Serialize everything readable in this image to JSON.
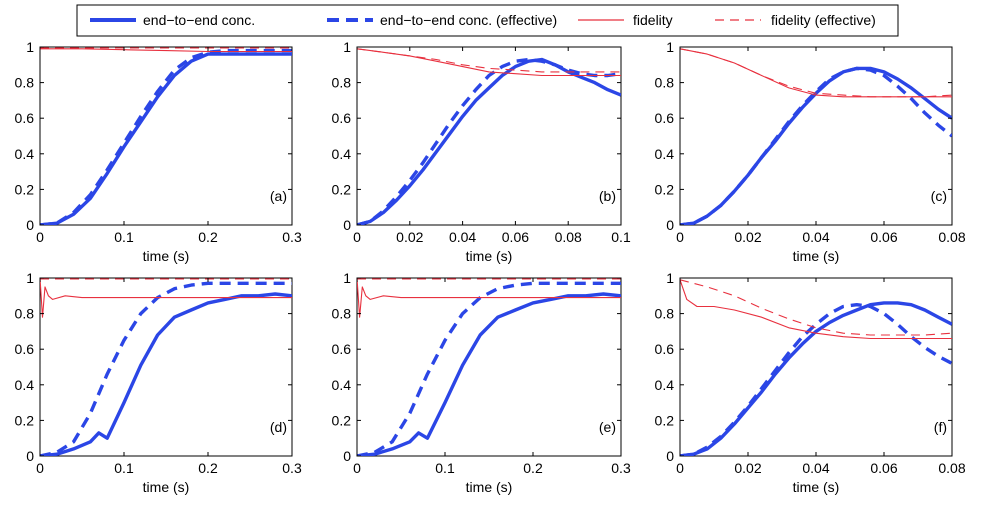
{
  "colors": {
    "concurrence": "#2b46e6",
    "fidelity": "#e8313f",
    "axis": "#000000"
  },
  "legend": {
    "items": [
      {
        "label": "end−to−end conc.",
        "series": "concurrence",
        "style": "solid"
      },
      {
        "label": "end−to−end conc. (effective)",
        "series": "concurrence",
        "style": "dashed"
      },
      {
        "label": "fidelity",
        "series": "fidelity",
        "style": "solid"
      },
      {
        "label": "fidelity (effective)",
        "series": "fidelity",
        "style": "dashed"
      }
    ]
  },
  "chart_data": [
    {
      "type": "line",
      "tag": "(a)",
      "xlabel": "time (s)",
      "ylabel": "",
      "xlim": [
        0,
        0.3
      ],
      "ylim": [
        0,
        1
      ],
      "xticks": [
        0,
        0.1,
        0.2,
        0.3
      ],
      "xtick_labels": [
        "0",
        "0.1",
        "0.2",
        "0.3"
      ],
      "yticks": [
        0,
        0.2,
        0.4,
        0.6,
        0.8,
        1
      ],
      "ytick_labels": [
        "0",
        "0.2",
        "0.4",
        "0.6",
        "0.8",
        "1"
      ],
      "series": [
        {
          "name": "end-to-end conc.",
          "x": [
            0,
            0.02,
            0.04,
            0.06,
            0.08,
            0.1,
            0.12,
            0.14,
            0.16,
            0.18,
            0.2,
            0.22,
            0.25,
            0.28,
            0.3
          ],
          "y": [
            0,
            0.01,
            0.06,
            0.15,
            0.29,
            0.44,
            0.58,
            0.72,
            0.84,
            0.92,
            0.96,
            0.96,
            0.96,
            0.96,
            0.96
          ]
        },
        {
          "name": "end-to-end conc. (effective)",
          "x": [
            0,
            0.02,
            0.04,
            0.06,
            0.08,
            0.1,
            0.12,
            0.14,
            0.16,
            0.18,
            0.2,
            0.22,
            0.25,
            0.28,
            0.3
          ],
          "y": [
            0,
            0.01,
            0.07,
            0.17,
            0.31,
            0.46,
            0.61,
            0.75,
            0.87,
            0.94,
            0.97,
            0.98,
            0.98,
            0.98,
            0.98
          ]
        },
        {
          "name": "fidelity",
          "x": [
            0,
            0.05,
            0.1,
            0.15,
            0.2,
            0.25,
            0.3
          ],
          "y": [
            0.99,
            0.99,
            0.985,
            0.98,
            0.975,
            0.975,
            0.975
          ]
        },
        {
          "name": "fidelity (effective)",
          "x": [
            0,
            0.05,
            0.1,
            0.15,
            0.2,
            0.25,
            0.3
          ],
          "y": [
            0.995,
            0.995,
            0.995,
            0.995,
            0.995,
            0.995,
            0.995
          ]
        }
      ]
    },
    {
      "type": "line",
      "tag": "(b)",
      "xlabel": "time (s)",
      "ylabel": "",
      "xlim": [
        0,
        0.1
      ],
      "ylim": [
        0,
        1
      ],
      "xticks": [
        0,
        0.02,
        0.04,
        0.06,
        0.08,
        0.1
      ],
      "xtick_labels": [
        "0",
        "0.02",
        "0.04",
        "0.06",
        "0.08",
        "0.1"
      ],
      "yticks": [
        0,
        0.2,
        0.4,
        0.6,
        0.8,
        1
      ],
      "ytick_labels": [
        "0",
        "0.2",
        "0.4",
        "0.6",
        "0.8",
        "1"
      ],
      "series": [
        {
          "name": "end-to-end conc.",
          "x": [
            0,
            0.005,
            0.01,
            0.015,
            0.02,
            0.025,
            0.03,
            0.035,
            0.04,
            0.045,
            0.05,
            0.055,
            0.06,
            0.065,
            0.07,
            0.075,
            0.08,
            0.085,
            0.09,
            0.095,
            0.1
          ],
          "y": [
            0,
            0.02,
            0.07,
            0.14,
            0.22,
            0.31,
            0.41,
            0.51,
            0.61,
            0.7,
            0.77,
            0.84,
            0.89,
            0.92,
            0.93,
            0.9,
            0.86,
            0.83,
            0.8,
            0.76,
            0.73
          ]
        },
        {
          "name": "end-to-end conc. (effective)",
          "x": [
            0,
            0.005,
            0.01,
            0.015,
            0.02,
            0.025,
            0.03,
            0.035,
            0.04,
            0.045,
            0.05,
            0.055,
            0.06,
            0.065,
            0.07,
            0.075,
            0.08,
            0.085,
            0.09,
            0.095,
            0.1
          ],
          "y": [
            0,
            0.02,
            0.08,
            0.16,
            0.25,
            0.35,
            0.46,
            0.57,
            0.67,
            0.76,
            0.84,
            0.89,
            0.92,
            0.93,
            0.92,
            0.9,
            0.87,
            0.85,
            0.84,
            0.84,
            0.85
          ]
        },
        {
          "name": "fidelity",
          "x": [
            0,
            0.01,
            0.02,
            0.03,
            0.04,
            0.05,
            0.06,
            0.07,
            0.08,
            0.09,
            0.1
          ],
          "y": [
            0.99,
            0.97,
            0.95,
            0.92,
            0.89,
            0.86,
            0.85,
            0.84,
            0.84,
            0.84,
            0.84
          ]
        },
        {
          "name": "fidelity (effective)",
          "x": [
            0,
            0.01,
            0.02,
            0.03,
            0.04,
            0.05,
            0.06,
            0.07,
            0.08,
            0.09,
            0.1
          ],
          "y": [
            0.99,
            0.97,
            0.95,
            0.93,
            0.9,
            0.88,
            0.87,
            0.86,
            0.86,
            0.86,
            0.86
          ]
        }
      ]
    },
    {
      "type": "line",
      "tag": "(c)",
      "xlabel": "time (s)",
      "ylabel": "",
      "xlim": [
        0,
        0.08
      ],
      "ylim": [
        0,
        1
      ],
      "xticks": [
        0,
        0.02,
        0.04,
        0.06,
        0.08
      ],
      "xtick_labels": [
        "0",
        "0.02",
        "0.04",
        "0.06",
        "0.08"
      ],
      "yticks": [
        0,
        0.2,
        0.4,
        0.6,
        0.8,
        1
      ],
      "ytick_labels": [
        "0",
        "0.2",
        "0.4",
        "0.6",
        "0.8",
        "1"
      ],
      "series": [
        {
          "name": "end-to-end conc.",
          "x": [
            0,
            0.004,
            0.008,
            0.012,
            0.016,
            0.02,
            0.024,
            0.028,
            0.032,
            0.036,
            0.04,
            0.044,
            0.048,
            0.052,
            0.056,
            0.06,
            0.064,
            0.068,
            0.072,
            0.076,
            0.08
          ],
          "y": [
            0,
            0.01,
            0.05,
            0.11,
            0.19,
            0.28,
            0.38,
            0.47,
            0.57,
            0.66,
            0.74,
            0.81,
            0.86,
            0.88,
            0.88,
            0.86,
            0.82,
            0.77,
            0.71,
            0.65,
            0.6
          ]
        },
        {
          "name": "end-to-end conc. (effective)",
          "x": [
            0,
            0.004,
            0.008,
            0.012,
            0.016,
            0.02,
            0.024,
            0.028,
            0.032,
            0.036,
            0.04,
            0.044,
            0.048,
            0.052,
            0.056,
            0.06,
            0.064,
            0.068,
            0.072,
            0.076,
            0.08
          ],
          "y": [
            0,
            0.01,
            0.05,
            0.11,
            0.19,
            0.28,
            0.38,
            0.48,
            0.58,
            0.67,
            0.75,
            0.82,
            0.86,
            0.88,
            0.87,
            0.84,
            0.78,
            0.71,
            0.63,
            0.56,
            0.5
          ]
        },
        {
          "name": "fidelity",
          "x": [
            0,
            0.008,
            0.016,
            0.024,
            0.032,
            0.04,
            0.048,
            0.056,
            0.064,
            0.072,
            0.08
          ],
          "y": [
            0.99,
            0.96,
            0.91,
            0.84,
            0.77,
            0.73,
            0.72,
            0.72,
            0.72,
            0.72,
            0.72
          ]
        },
        {
          "name": "fidelity (effective)",
          "x": [
            0,
            0.008,
            0.016,
            0.024,
            0.032,
            0.04,
            0.048,
            0.056,
            0.064,
            0.072,
            0.08
          ],
          "y": [
            0.99,
            0.96,
            0.91,
            0.84,
            0.78,
            0.74,
            0.73,
            0.72,
            0.72,
            0.72,
            0.73
          ]
        }
      ]
    },
    {
      "type": "line",
      "tag": "(d)",
      "xlabel": "time (s)",
      "ylabel": "",
      "xlim": [
        0,
        0.3
      ],
      "ylim": [
        0,
        1
      ],
      "xticks": [
        0,
        0.1,
        0.2,
        0.3
      ],
      "xtick_labels": [
        "0",
        "0.1",
        "0.2",
        "0.3"
      ],
      "yticks": [
        0,
        0.2,
        0.4,
        0.6,
        0.8,
        1
      ],
      "ytick_labels": [
        "0",
        "0.2",
        "0.4",
        "0.6",
        "0.8",
        "1"
      ],
      "series": [
        {
          "name": "end-to-end conc.",
          "x": [
            0,
            0.02,
            0.04,
            0.06,
            0.07,
            0.08,
            0.1,
            0.12,
            0.14,
            0.16,
            0.18,
            0.2,
            0.22,
            0.24,
            0.26,
            0.28,
            0.3
          ],
          "y": [
            0,
            0.01,
            0.04,
            0.08,
            0.13,
            0.1,
            0.3,
            0.51,
            0.68,
            0.78,
            0.82,
            0.86,
            0.88,
            0.9,
            0.9,
            0.91,
            0.9
          ]
        },
        {
          "name": "end-to-end conc. (effective)",
          "x": [
            0,
            0.02,
            0.04,
            0.06,
            0.08,
            0.1,
            0.12,
            0.14,
            0.16,
            0.18,
            0.2,
            0.22,
            0.25,
            0.28,
            0.3
          ],
          "y": [
            0,
            0.02,
            0.08,
            0.24,
            0.46,
            0.65,
            0.8,
            0.89,
            0.94,
            0.96,
            0.97,
            0.97,
            0.97,
            0.97,
            0.97
          ]
        },
        {
          "name": "fidelity",
          "x": [
            0,
            0.003,
            0.006,
            0.01,
            0.015,
            0.03,
            0.05,
            0.1,
            0.15,
            0.2,
            0.25,
            0.3
          ],
          "y": [
            1.0,
            0.78,
            0.95,
            0.9,
            0.88,
            0.9,
            0.89,
            0.89,
            0.89,
            0.89,
            0.89,
            0.89
          ]
        },
        {
          "name": "fidelity (effective)",
          "x": [
            0,
            0.1,
            0.2,
            0.3
          ],
          "y": [
            0.995,
            0.995,
            0.995,
            0.995
          ]
        }
      ]
    },
    {
      "type": "line",
      "tag": "(e)",
      "xlabel": "time (s)",
      "ylabel": "",
      "xlim": [
        0,
        0.3
      ],
      "ylim": [
        0,
        1
      ],
      "xticks": [
        0,
        0.1,
        0.2,
        0.3
      ],
      "xtick_labels": [
        "0",
        "0.1",
        "0.2",
        "0.3"
      ],
      "yticks": [
        0,
        0.2,
        0.4,
        0.6,
        0.8,
        1
      ],
      "ytick_labels": [
        "0",
        "0.2",
        "0.4",
        "0.6",
        "0.8",
        "1"
      ],
      "series": [
        {
          "name": "end-to-end conc.",
          "x": [
            0,
            0.02,
            0.04,
            0.06,
            0.07,
            0.08,
            0.1,
            0.12,
            0.14,
            0.16,
            0.18,
            0.2,
            0.22,
            0.24,
            0.26,
            0.28,
            0.3
          ],
          "y": [
            0,
            0.01,
            0.04,
            0.08,
            0.13,
            0.1,
            0.3,
            0.51,
            0.68,
            0.78,
            0.82,
            0.86,
            0.88,
            0.9,
            0.9,
            0.91,
            0.9
          ]
        },
        {
          "name": "end-to-end conc. (effective)",
          "x": [
            0,
            0.02,
            0.04,
            0.06,
            0.08,
            0.1,
            0.12,
            0.14,
            0.16,
            0.18,
            0.2,
            0.22,
            0.25,
            0.28,
            0.3
          ],
          "y": [
            0,
            0.02,
            0.08,
            0.24,
            0.46,
            0.65,
            0.8,
            0.89,
            0.94,
            0.96,
            0.97,
            0.97,
            0.97,
            0.97,
            0.97
          ]
        },
        {
          "name": "fidelity",
          "x": [
            0,
            0.003,
            0.006,
            0.01,
            0.015,
            0.03,
            0.05,
            0.1,
            0.15,
            0.2,
            0.25,
            0.3
          ],
          "y": [
            1.0,
            0.78,
            0.95,
            0.9,
            0.88,
            0.9,
            0.89,
            0.89,
            0.89,
            0.89,
            0.89,
            0.89
          ]
        },
        {
          "name": "fidelity (effective)",
          "x": [
            0,
            0.1,
            0.2,
            0.3
          ],
          "y": [
            0.995,
            0.995,
            0.995,
            0.995
          ]
        }
      ]
    },
    {
      "type": "line",
      "tag": "(f)",
      "xlabel": "time (s)",
      "ylabel": "",
      "xlim": [
        0,
        0.08
      ],
      "ylim": [
        0,
        1
      ],
      "xticks": [
        0,
        0.02,
        0.04,
        0.06,
        0.08
      ],
      "xtick_labels": [
        "0",
        "0.02",
        "0.04",
        "0.06",
        "0.08"
      ],
      "yticks": [
        0,
        0.2,
        0.4,
        0.6,
        0.8,
        1
      ],
      "ytick_labels": [
        "0",
        "0.2",
        "0.4",
        "0.6",
        "0.8",
        "1"
      ],
      "series": [
        {
          "name": "end-to-end conc.",
          "x": [
            0,
            0.004,
            0.008,
            0.012,
            0.016,
            0.02,
            0.024,
            0.028,
            0.032,
            0.036,
            0.04,
            0.044,
            0.048,
            0.052,
            0.056,
            0.06,
            0.064,
            0.068,
            0.072,
            0.076,
            0.08
          ],
          "y": [
            0,
            0.01,
            0.04,
            0.1,
            0.18,
            0.27,
            0.36,
            0.46,
            0.55,
            0.63,
            0.7,
            0.75,
            0.79,
            0.82,
            0.85,
            0.86,
            0.86,
            0.85,
            0.82,
            0.78,
            0.74
          ]
        },
        {
          "name": "end-to-end conc. (effective)",
          "x": [
            0,
            0.004,
            0.008,
            0.012,
            0.016,
            0.02,
            0.024,
            0.028,
            0.032,
            0.036,
            0.04,
            0.044,
            0.048,
            0.052,
            0.056,
            0.06,
            0.064,
            0.068,
            0.072,
            0.076,
            0.08
          ],
          "y": [
            0,
            0.01,
            0.05,
            0.11,
            0.19,
            0.28,
            0.38,
            0.48,
            0.58,
            0.67,
            0.74,
            0.8,
            0.84,
            0.85,
            0.84,
            0.8,
            0.74,
            0.67,
            0.61,
            0.56,
            0.52
          ]
        },
        {
          "name": "fidelity",
          "x": [
            0,
            0.002,
            0.005,
            0.01,
            0.016,
            0.024,
            0.032,
            0.04,
            0.048,
            0.056,
            0.064,
            0.072,
            0.08
          ],
          "y": [
            0.99,
            0.88,
            0.84,
            0.84,
            0.82,
            0.78,
            0.72,
            0.69,
            0.67,
            0.66,
            0.66,
            0.66,
            0.66
          ]
        },
        {
          "name": "fidelity (effective)",
          "x": [
            0,
            0.008,
            0.016,
            0.024,
            0.032,
            0.04,
            0.048,
            0.056,
            0.064,
            0.072,
            0.08
          ],
          "y": [
            0.99,
            0.95,
            0.9,
            0.83,
            0.77,
            0.72,
            0.69,
            0.68,
            0.68,
            0.68,
            0.69
          ]
        }
      ]
    }
  ]
}
